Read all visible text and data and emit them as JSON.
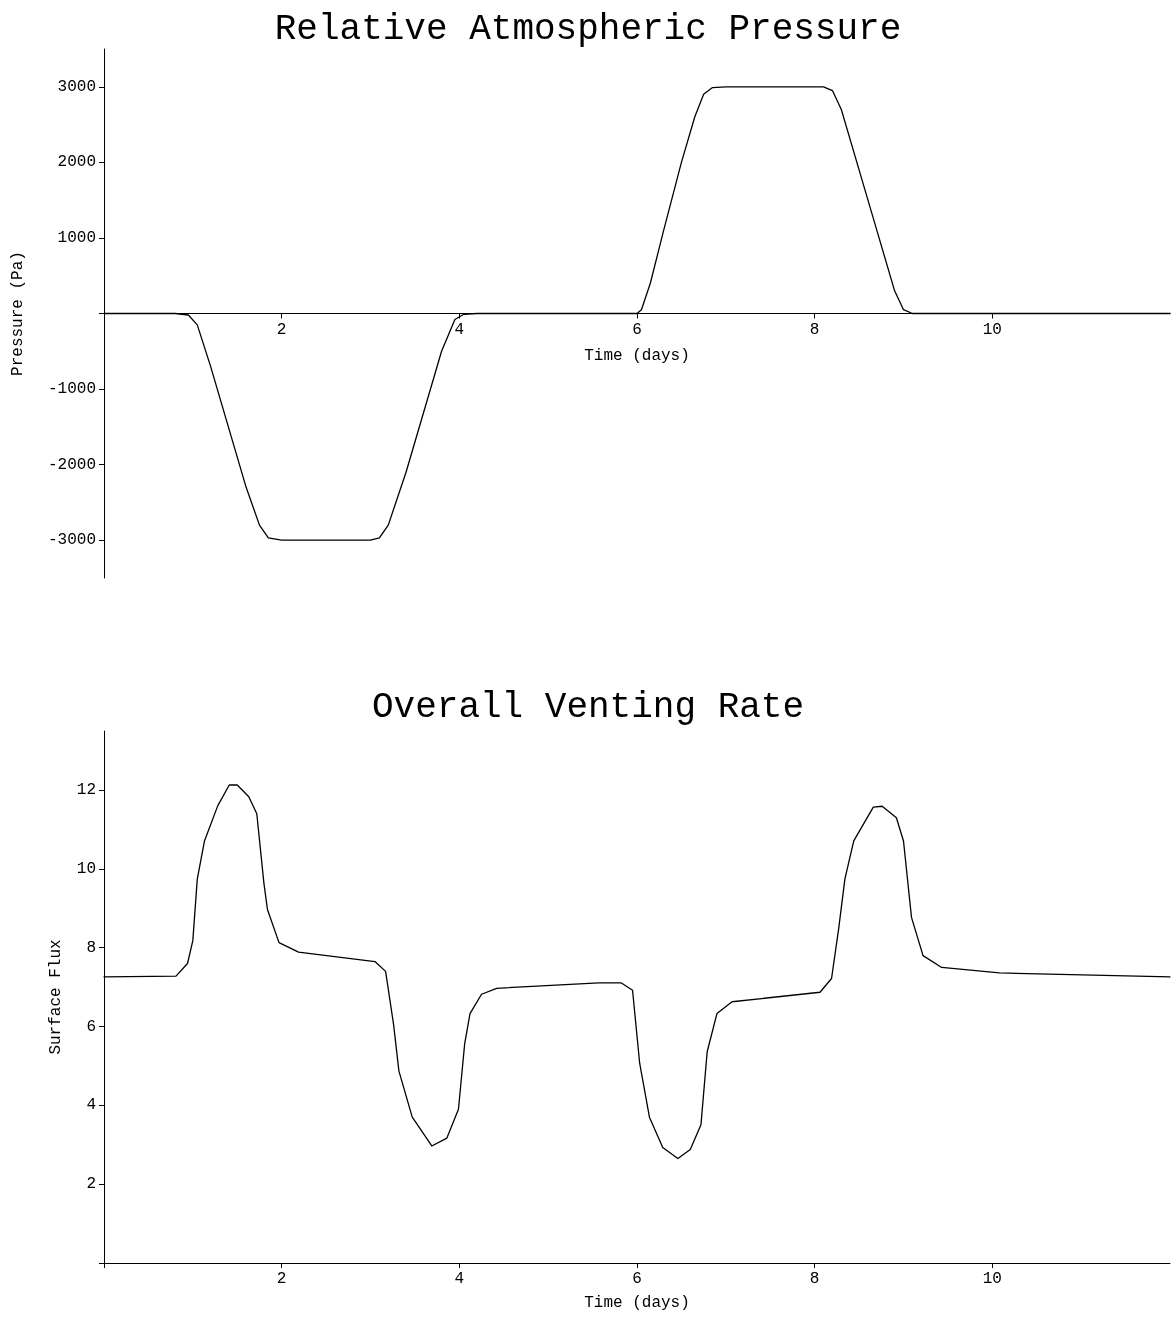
{
  "chart_data": [
    {
      "type": "line",
      "title": "Relative Atmospheric Pressure",
      "xlabel": "Time (days)",
      "ylabel": "Pressure (Pa)",
      "xlim": [
        0,
        12
      ],
      "xticks": [
        2,
        4,
        6,
        8,
        10
      ],
      "ylim": [
        -3500,
        3500
      ],
      "yticks": [
        -3000,
        -2000,
        -1000,
        {
          "value": 0,
          "label": null
        },
        1000,
        2000,
        3000
      ],
      "marker": "none",
      "line_style": "solid",
      "series": [
        {
          "color": "#000000",
          "x": [
            0,
            0.8,
            0.95,
            1.05,
            1.2,
            1.4,
            1.6,
            1.75,
            1.85,
            2.0,
            3.0,
            3.1,
            3.2,
            3.4,
            3.6,
            3.8,
            3.95,
            4.05,
            4.2,
            6.0,
            6.05,
            6.15,
            6.3,
            6.5,
            6.65,
            6.75,
            6.85,
            7.0,
            8.1,
            8.2,
            8.3,
            8.5,
            8.7,
            8.9,
            9.0,
            9.1,
            12
          ],
          "values": [
            0,
            0,
            -20,
            -150,
            -700,
            -1500,
            -2300,
            -2800,
            -2970,
            -3000,
            -3000,
            -2970,
            -2800,
            -2100,
            -1300,
            -500,
            -80,
            -10,
            0,
            0,
            50,
            400,
            1100,
            2000,
            2600,
            2900,
            2990,
            3000,
            3000,
            2950,
            2700,
            1900,
            1100,
            300,
            50,
            0,
            0
          ]
        }
      ]
    },
    {
      "type": "line",
      "title": "Overall Venting Rate",
      "xlabel": "Time (days)",
      "ylabel": "Surface Flux",
      "xlim": [
        0,
        12
      ],
      "xticks": [
        {
          "value": 0,
          "label": null
        },
        2,
        4,
        6,
        8,
        10
      ],
      "ylim": [
        0,
        13.5
      ],
      "yticks": [
        {
          "value": 0,
          "label": null
        },
        2,
        4,
        6,
        8,
        10,
        12
      ],
      "marker": "none",
      "line_style": "solid",
      "series": [
        {
          "color": "#000000",
          "x": [
            0,
            0.81,
            0.94,
            1.0,
            1.05,
            1.13,
            1.28,
            1.41,
            1.5,
            1.63,
            1.72,
            1.8,
            1.84,
            1.97,
            2.19,
            3.05,
            3.17,
            3.26,
            3.32,
            3.47,
            3.69,
            3.86,
            3.99,
            4.06,
            4.12,
            4.25,
            4.42,
            5.57,
            5.82,
            5.95,
            6.03,
            6.14,
            6.29,
            6.46,
            6.6,
            6.72,
            6.79,
            6.9,
            7.07,
            8.06,
            8.19,
            8.27,
            8.34,
            8.44,
            8.66,
            8.76,
            8.92,
            9.0,
            9.09,
            9.22,
            9.43,
            10.08,
            12.0
          ],
          "values": [
            7.26,
            7.28,
            7.6,
            8.18,
            9.74,
            10.7,
            11.6,
            12.13,
            12.13,
            11.83,
            11.4,
            9.64,
            8.97,
            8.13,
            7.89,
            7.65,
            7.4,
            6.05,
            4.87,
            3.7,
            2.97,
            3.17,
            3.9,
            5.56,
            6.33,
            6.82,
            6.97,
            7.11,
            7.11,
            6.92,
            5.07,
            3.7,
            2.93,
            2.65,
            2.88,
            3.51,
            5.36,
            6.33,
            6.63,
            6.87,
            7.22,
            8.48,
            9.74,
            10.71,
            11.57,
            11.59,
            11.3,
            10.71,
            8.77,
            7.8,
            7.5,
            7.36,
            7.26
          ]
        }
      ]
    }
  ]
}
